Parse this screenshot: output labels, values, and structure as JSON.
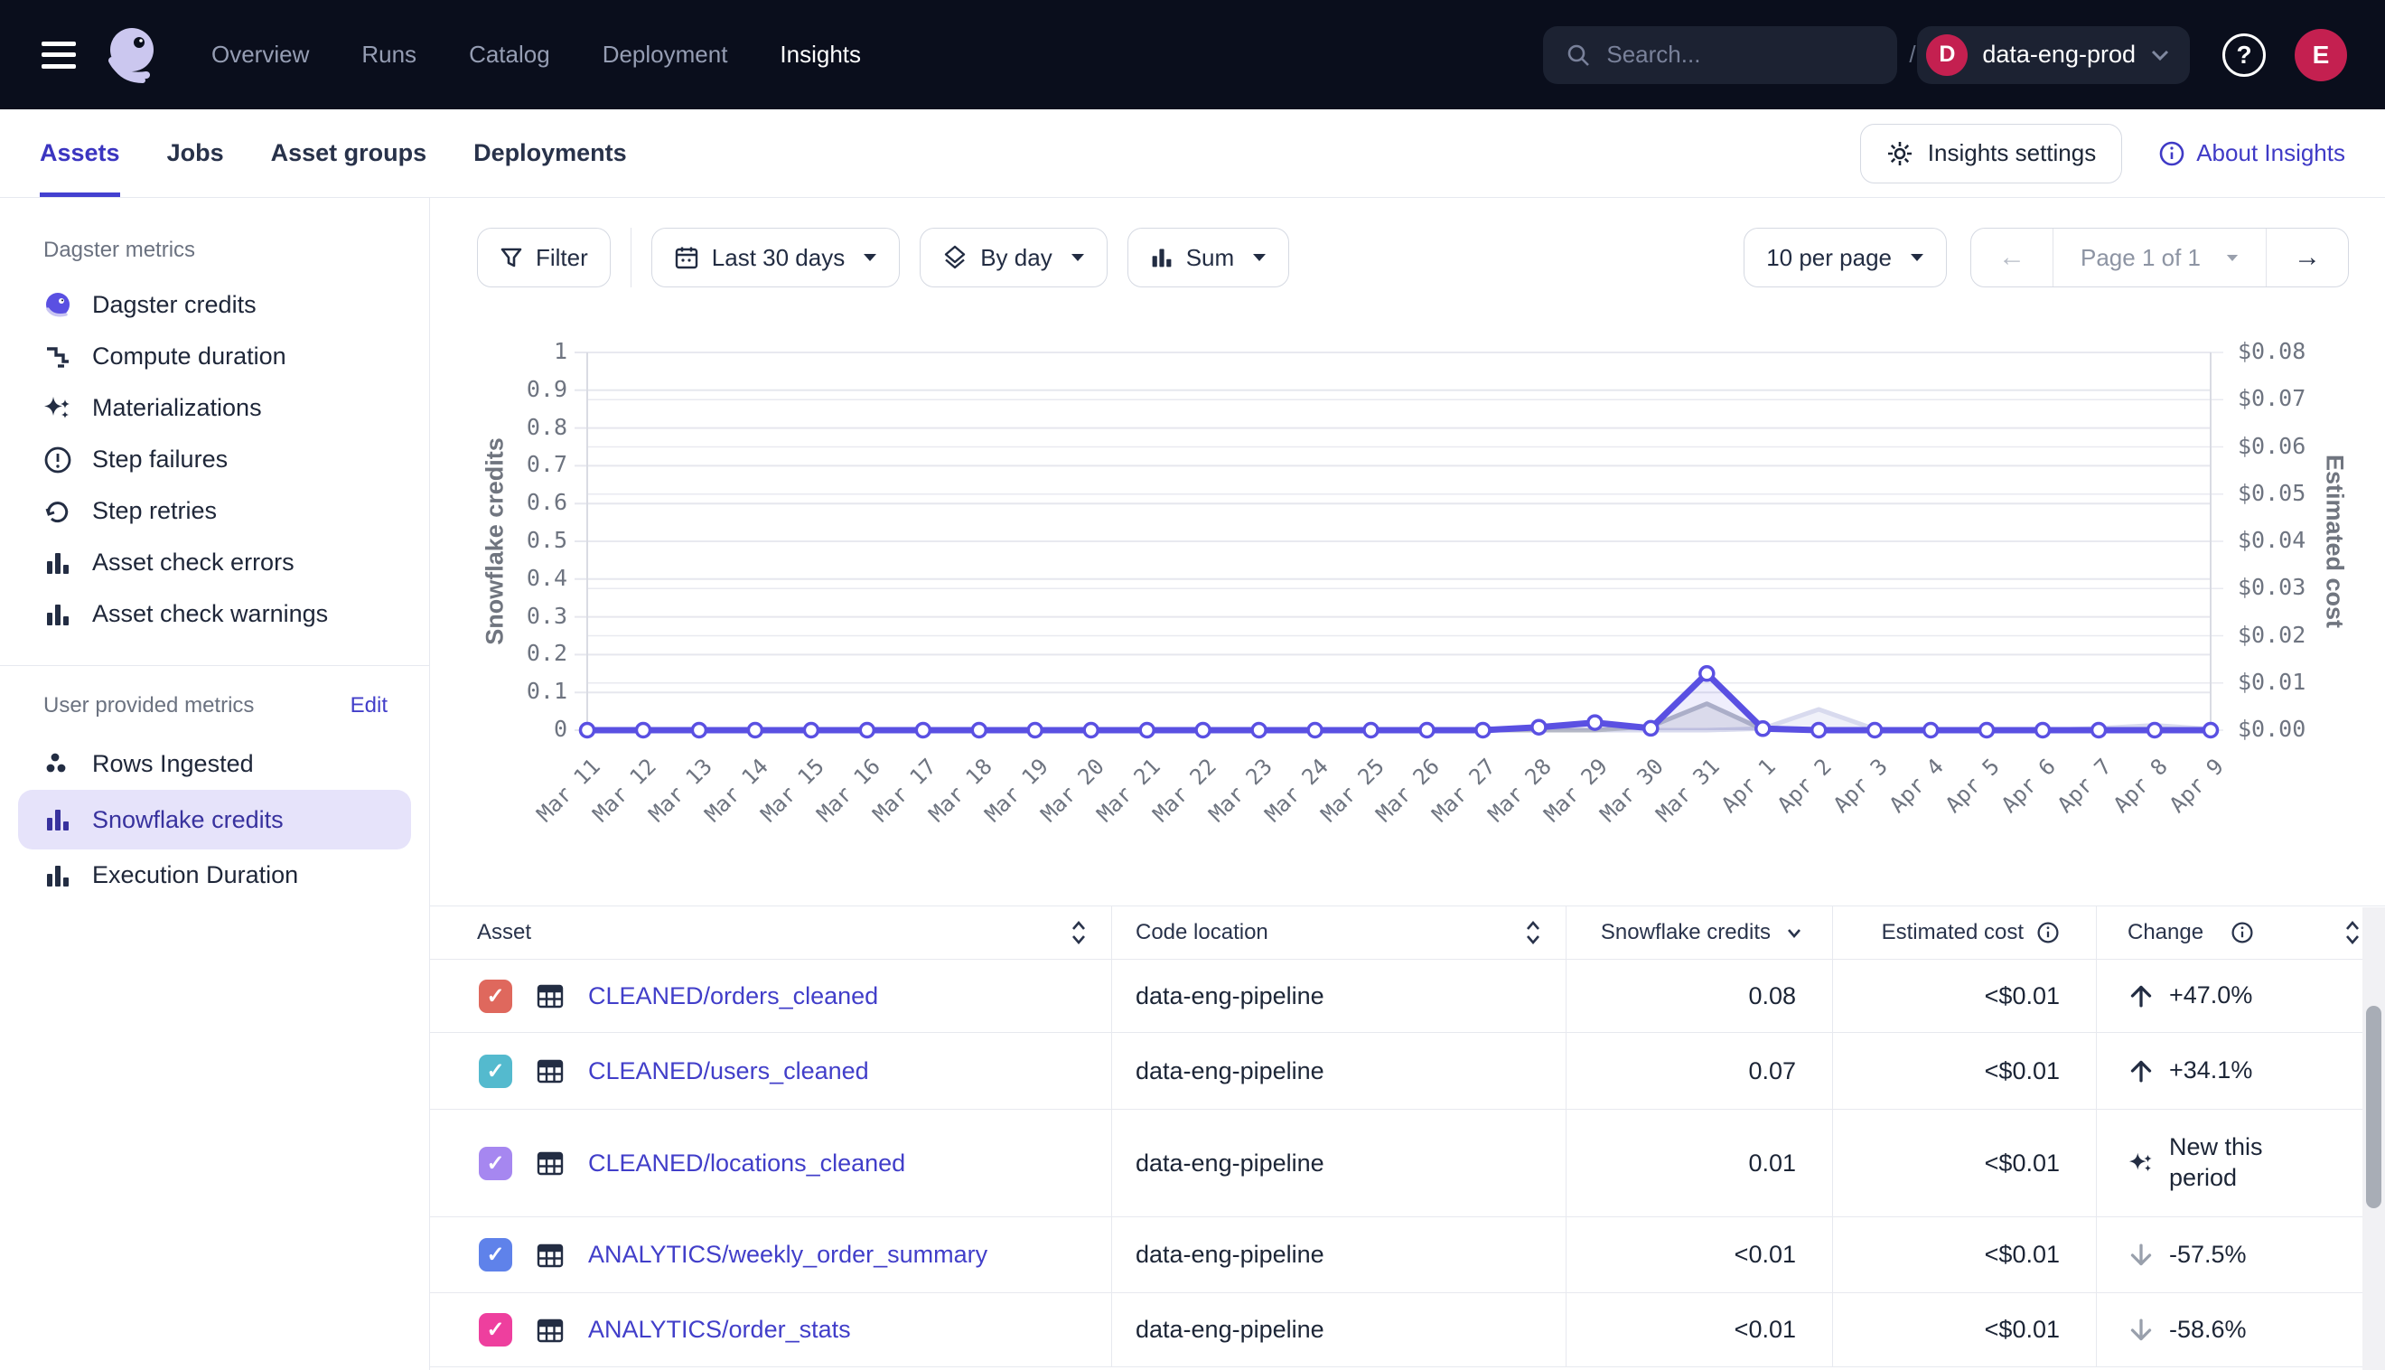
{
  "topnav": {
    "items": [
      {
        "label": "Overview",
        "active": false
      },
      {
        "label": "Runs",
        "active": false
      },
      {
        "label": "Catalog",
        "active": false
      },
      {
        "label": "Deployment",
        "active": false
      },
      {
        "label": "Insights",
        "active": true
      }
    ],
    "search": {
      "placeholder": "Search...",
      "shortcut": "/"
    },
    "org": {
      "initial": "D",
      "name": "data-eng-prod"
    },
    "help_glyph": "?",
    "avatar_initial": "E"
  },
  "subnav": {
    "tabs": [
      {
        "label": "Assets",
        "active": true
      },
      {
        "label": "Jobs",
        "active": false
      },
      {
        "label": "Asset groups",
        "active": false
      },
      {
        "label": "Deployments",
        "active": false
      }
    ],
    "settings_button": "Insights settings",
    "about_link": "About Insights"
  },
  "sidebar": {
    "section1_label": "Dagster metrics",
    "dagster_metrics": [
      {
        "label": "Dagster credits",
        "icon": "dagster-octopus-icon"
      },
      {
        "label": "Compute duration",
        "icon": "duration-steps-icon"
      },
      {
        "label": "Materializations",
        "icon": "sparkles-icon"
      },
      {
        "label": "Step failures",
        "icon": "alert-circle-icon"
      },
      {
        "label": "Step retries",
        "icon": "retry-icon"
      },
      {
        "label": "Asset check errors",
        "icon": "bar-chart-icon"
      },
      {
        "label": "Asset check warnings",
        "icon": "bar-chart-icon"
      }
    ],
    "section2_label": "User provided metrics",
    "edit_link": "Edit",
    "user_metrics": [
      {
        "label": "Rows Ingested",
        "icon": "dots-cluster-icon",
        "selected": false
      },
      {
        "label": "Snowflake credits",
        "icon": "bar-chart-icon",
        "selected": true
      },
      {
        "label": "Execution Duration",
        "icon": "bar-chart-icon",
        "selected": false
      }
    ]
  },
  "toolbar": {
    "filter_label": "Filter",
    "range_label": "Last 30 days",
    "granularity_label": "By day",
    "aggregation_label": "Sum",
    "per_page_label": "10 per page",
    "page_label": "Page 1 of 1",
    "prev_glyph": "←",
    "next_glyph": "→"
  },
  "chart_data": {
    "type": "line",
    "x": [
      "Mar 11",
      "Mar 12",
      "Mar 13",
      "Mar 14",
      "Mar 15",
      "Mar 16",
      "Mar 17",
      "Mar 18",
      "Mar 19",
      "Mar 20",
      "Mar 21",
      "Mar 22",
      "Mar 23",
      "Mar 24",
      "Mar 25",
      "Mar 26",
      "Mar 27",
      "Mar 28",
      "Mar 29",
      "Mar 30",
      "Mar 31",
      "Apr 1",
      "Apr 2",
      "Apr 3",
      "Apr 4",
      "Apr 5",
      "Apr 6",
      "Apr 7",
      "Apr 8",
      "Apr 9"
    ],
    "left_axis": {
      "title": "Snowflake credits",
      "min": 0,
      "max": 1,
      "tick_step": 0.1
    },
    "right_axis": {
      "title": "Estimated cost",
      "min": 0,
      "max": 0.08,
      "tick_step": 0.01,
      "prefix": "$"
    },
    "grid": true,
    "legend": "none",
    "series": [
      {
        "name": "light-series",
        "color": "#d8daee",
        "fill": "rgba(160,165,220,0.16)",
        "width": 5,
        "markers": false,
        "values": [
          0,
          0,
          0,
          0,
          0,
          0,
          0,
          0,
          0,
          0,
          0,
          0,
          0,
          0,
          0,
          0,
          0,
          0,
          0,
          0,
          0,
          0.004,
          0.055,
          0.003,
          0,
          0,
          0,
          0.005,
          0.013,
          0.003
        ]
      },
      {
        "name": "gray-series",
        "color": "#b4b8c6",
        "fill": "rgba(130,135,155,0.18)",
        "width": 5,
        "markers": false,
        "values": [
          0,
          0,
          0,
          0,
          0,
          0,
          0,
          0,
          0,
          0,
          0,
          0,
          0,
          0,
          0,
          0,
          0,
          0,
          0,
          0.01,
          0.07,
          0.002,
          0,
          0,
          0,
          0,
          0,
          0,
          0,
          0
        ]
      },
      {
        "name": "snowflake-credits-sum",
        "color": "#5a50e2",
        "fill": "rgba(99,91,227,0.10)",
        "width": 7,
        "markers": true,
        "values": [
          0,
          0,
          0,
          0,
          0,
          0,
          0,
          0,
          0,
          0,
          0,
          0,
          0,
          0,
          0,
          0,
          0,
          0.008,
          0.02,
          0.005,
          0.15,
          0.004,
          0,
          0,
          0,
          0,
          0,
          0,
          0,
          0
        ]
      }
    ]
  },
  "table": {
    "columns": [
      {
        "label": "Asset",
        "sort": "both"
      },
      {
        "label": "Code location",
        "sort": "both"
      },
      {
        "label": "Snowflake credits",
        "sort": "desc"
      },
      {
        "label": "Estimated cost",
        "info": true
      },
      {
        "label": "Change",
        "info": true,
        "sort": "both"
      }
    ],
    "rows": [
      {
        "asset": "CLEANED/orders_cleaned",
        "checkbox_color": "#df685d",
        "checked": true,
        "code_location": "data-eng-pipeline",
        "credits": "0.08",
        "cost": "<$0.01",
        "change_icon": "up",
        "change": "+47.0%"
      },
      {
        "asset": "CLEANED/users_cleaned",
        "checkbox_color": "#54bace",
        "checked": true,
        "code_location": "data-eng-pipeline",
        "credits": "0.07",
        "cost": "<$0.01",
        "change_icon": "up",
        "change": "+34.1%"
      },
      {
        "asset": "CLEANED/locations_cleaned",
        "checkbox_color": "#a687f0",
        "checked": true,
        "code_location": "data-eng-pipeline",
        "credits": "0.01",
        "cost": "<$0.01",
        "change_icon": "new",
        "change": "New this period"
      },
      {
        "asset": "ANALYTICS/weekly_order_summary",
        "checkbox_color": "#5f82ea",
        "checked": true,
        "code_location": "data-eng-pipeline",
        "credits": "<0.01",
        "cost": "<$0.01",
        "change_icon": "down",
        "change": "-57.5%"
      },
      {
        "asset": "ANALYTICS/order_stats",
        "checkbox_color": "#ee3f9e",
        "checked": true,
        "code_location": "data-eng-pipeline",
        "credits": "<0.01",
        "cost": "<$0.01",
        "change_icon": "down",
        "change": "-58.6%"
      }
    ],
    "checkmark_glyph": "✓"
  },
  "colors": {
    "topnav_bg": "#0a0e1c",
    "accent_indigo": "#423ec9",
    "selected_pill_bg": "#e6e3fa",
    "crimson": "#c42050",
    "chart_line": "#5a50e2"
  }
}
